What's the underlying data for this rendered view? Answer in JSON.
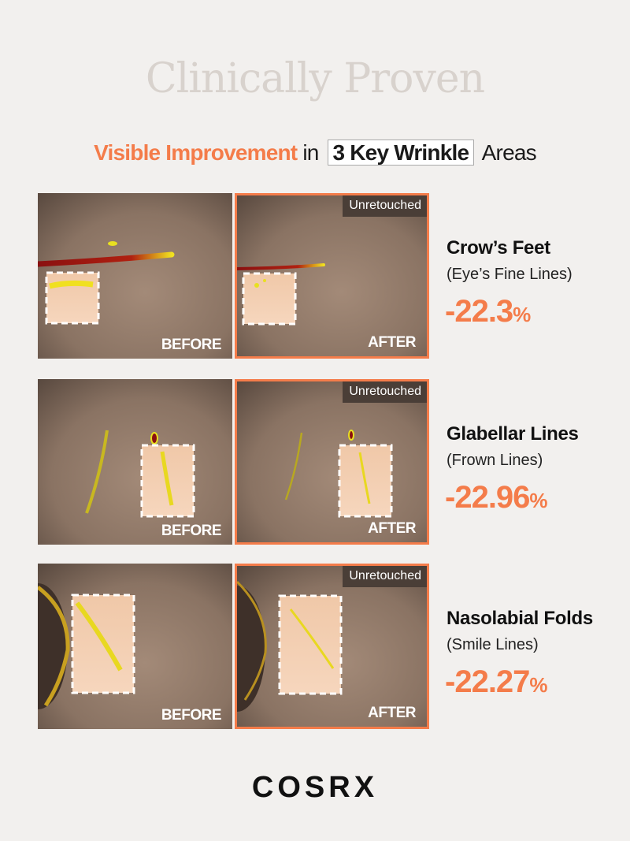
{
  "title": "Clinically Proven",
  "subtitle": {
    "accent": "Visible Improvement",
    "middle": "in",
    "boxed": "3 Key Wrinkle",
    "end": "Areas"
  },
  "labels": {
    "before": "BEFORE",
    "after": "AFTER",
    "tag": "Unretouched"
  },
  "colors": {
    "accent": "#f47c4a",
    "title": "#d8d2cd",
    "background": "#f2f0ee"
  },
  "rows": [
    {
      "area": "Crow’s Feet",
      "sub": "(Eye’s Fine Lines)",
      "value": "-22.3",
      "unit": "%"
    },
    {
      "area": "Glabellar Lines",
      "sub": "(Frown Lines)",
      "value": "-22.96",
      "unit": "%"
    },
    {
      "area": "Nasolabial Folds",
      "sub": "(Smile Lines)",
      "value": "-22.27",
      "unit": "%"
    }
  ],
  "brand": "COSRX"
}
